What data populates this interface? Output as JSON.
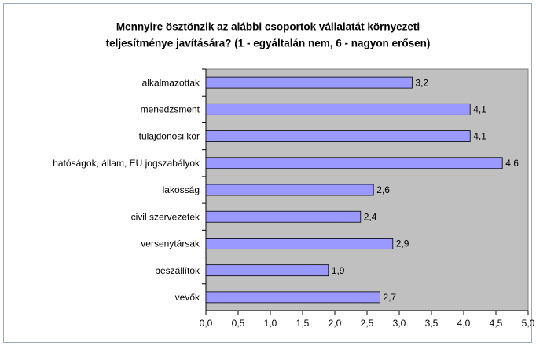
{
  "chart_data": {
    "type": "hbar",
    "title": [
      "Mennyire ösztönzik az alábbi csoportok vállalatát környezeti",
      "teljesítménye javítására? (1 - egyáltalán nem, 6 - nagyon erősen)"
    ],
    "categories": [
      "alkalmazottak",
      "menedzsment",
      "tulajdonosi kör",
      "hatóságok, állam, EU jogszabályok",
      "lakosság",
      "civil szervezetek",
      "versenytársak",
      "beszállítók",
      "vevők"
    ],
    "values": [
      3.2,
      4.1,
      4.1,
      4.6,
      2.6,
      2.4,
      2.9,
      1.9,
      2.7
    ],
    "value_labels": [
      "3,2",
      "4,1",
      "4,1",
      "4,6",
      "2,6",
      "2,4",
      "2,9",
      "1,9",
      "2,7"
    ],
    "color": "#9999ff",
    "plot_background": "#c0c0c0",
    "xlim": [
      0,
      5
    ],
    "xticks": [
      {
        "value": 0,
        "label": "0,0"
      },
      {
        "value": 0.5,
        "label": "0,5"
      },
      {
        "value": 1,
        "label": "1,0"
      },
      {
        "value": 1.5,
        "label": "1,5"
      },
      {
        "value": 2,
        "label": "2,0"
      },
      {
        "value": 2.5,
        "label": "2,5"
      },
      {
        "value": 3,
        "label": "3,0"
      },
      {
        "value": 3.5,
        "label": "3,5"
      },
      {
        "value": 4,
        "label": "4,0"
      },
      {
        "value": 4.5,
        "label": "4,5"
      },
      {
        "value": 5,
        "label": "5,0"
      }
    ],
    "grid": false
  }
}
